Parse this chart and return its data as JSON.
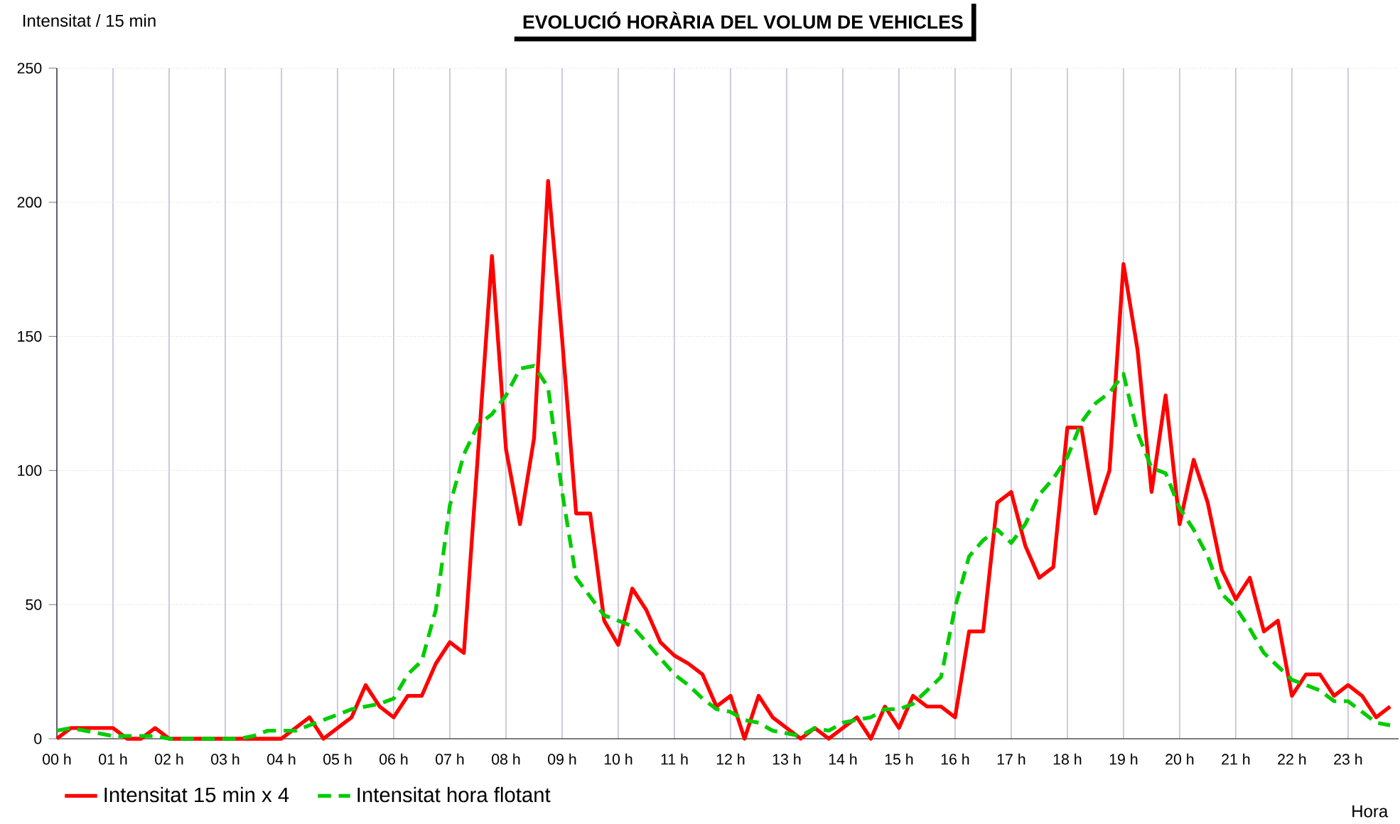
{
  "chart_data": {
    "type": "line",
    "title": "EVOLUCIÓ HORÀRIA DEL VOLUM  DE VEHICLES",
    "ylabel": "Intensitat / 15 min",
    "xlabel": "Hora",
    "x": [
      0,
      0.25,
      0.5,
      0.75,
      1,
      1.25,
      1.5,
      1.75,
      2,
      2.25,
      2.5,
      2.75,
      3,
      3.25,
      3.5,
      3.75,
      4,
      4.25,
      4.5,
      4.75,
      5,
      5.25,
      5.5,
      5.75,
      6,
      6.25,
      6.5,
      6.75,
      7,
      7.25,
      7.5,
      7.75,
      8,
      8.25,
      8.5,
      8.75,
      9,
      9.25,
      9.5,
      9.75,
      10,
      10.25,
      10.5,
      10.75,
      11,
      11.25,
      11.5,
      11.75,
      12,
      12.25,
      12.5,
      12.75,
      13,
      13.25,
      13.5,
      13.75,
      14,
      14.25,
      14.5,
      14.75,
      15,
      15.25,
      15.5,
      15.75,
      16,
      16.25,
      16.5,
      16.75,
      17,
      17.25,
      17.5,
      17.75,
      18,
      18.25,
      18.5,
      18.75,
      19,
      19.25,
      19.5,
      19.75,
      20,
      20.25,
      20.5,
      20.75,
      21,
      21.25,
      21.5,
      21.75,
      22,
      22.25,
      22.5,
      22.75,
      23,
      23.25,
      23.5,
      23.75
    ],
    "series": [
      {
        "name": "Intensitat 15 min  x  4",
        "color": "#ff0000",
        "line_style": "solid",
        "values": [
          0,
          4,
          4,
          4,
          4,
          0,
          0,
          4,
          0,
          0,
          0,
          0,
          0,
          0,
          0,
          0,
          0,
          4,
          8,
          0,
          4,
          8,
          20,
          12,
          8,
          16,
          16,
          28,
          36,
          32,
          106,
          180,
          108,
          80,
          112,
          208,
          149,
          84,
          84,
          44,
          35,
          56,
          48,
          36,
          31,
          28,
          24,
          12,
          16,
          0,
          16,
          8,
          4,
          0,
          4,
          0,
          4,
          8,
          0,
          12,
          4,
          16,
          12,
          12,
          8,
          40,
          40,
          88,
          92,
          72,
          60,
          64,
          116,
          116,
          84,
          100,
          177,
          145,
          92,
          128,
          80,
          104,
          88,
          63,
          52,
          60,
          40,
          44,
          16,
          24,
          24,
          16,
          20,
          16,
          8,
          12
        ]
      },
      {
        "name": "Intensitat hora flotant",
        "color": "#00cc00",
        "line_style": "dashed",
        "values": [
          3,
          4,
          3,
          2,
          1,
          1,
          1,
          1,
          0,
          0,
          0,
          0,
          0,
          0,
          1,
          3,
          3,
          3,
          5,
          7,
          9,
          11,
          12,
          13,
          15,
          24,
          29,
          48,
          87,
          106,
          117,
          121,
          128,
          138,
          139,
          131,
          92,
          60,
          53,
          46,
          44,
          42,
          36,
          30,
          24,
          20,
          15,
          11,
          10,
          7,
          6,
          3,
          2,
          1,
          4,
          3,
          6,
          7,
          8,
          11,
          11,
          13,
          18,
          23,
          49,
          68,
          74,
          78,
          73,
          80,
          91,
          97,
          105,
          118,
          125,
          129,
          136,
          114,
          101,
          99,
          86,
          78,
          68,
          54,
          49,
          41,
          32,
          27,
          22,
          20,
          18,
          14,
          14,
          10,
          6,
          5
        ]
      }
    ],
    "xlim": [
      0,
      23.9
    ],
    "ylim": [
      0,
      250
    ],
    "xticks": [
      {
        "value": 0,
        "label": "00 h"
      },
      {
        "value": 1,
        "label": "01 h"
      },
      {
        "value": 2,
        "label": "02 h"
      },
      {
        "value": 3,
        "label": "03 h"
      },
      {
        "value": 4,
        "label": "04 h"
      },
      {
        "value": 5,
        "label": "05 h"
      },
      {
        "value": 6,
        "label": "06 h"
      },
      {
        "value": 7,
        "label": "07 h"
      },
      {
        "value": 8,
        "label": "08 h"
      },
      {
        "value": 9,
        "label": "09 h"
      },
      {
        "value": 10,
        "label": "10 h"
      },
      {
        "value": 11,
        "label": "11 h"
      },
      {
        "value": 12,
        "label": "12 h"
      },
      {
        "value": 13,
        "label": "13 h"
      },
      {
        "value": 14,
        "label": "14 h"
      },
      {
        "value": 15,
        "label": "15 h"
      },
      {
        "value": 16,
        "label": "16 h"
      },
      {
        "value": 17,
        "label": "17 h"
      },
      {
        "value": 18,
        "label": "18 h"
      },
      {
        "value": 19,
        "label": "19 h"
      },
      {
        "value": 20,
        "label": "20 h"
      },
      {
        "value": 21,
        "label": "21 h"
      },
      {
        "value": 22,
        "label": "22 h"
      },
      {
        "value": 23,
        "label": "23 h"
      }
    ],
    "yticks": [
      0,
      50,
      100,
      150,
      200,
      250
    ],
    "grid": true,
    "legend": "bottom",
    "marker": "none"
  }
}
